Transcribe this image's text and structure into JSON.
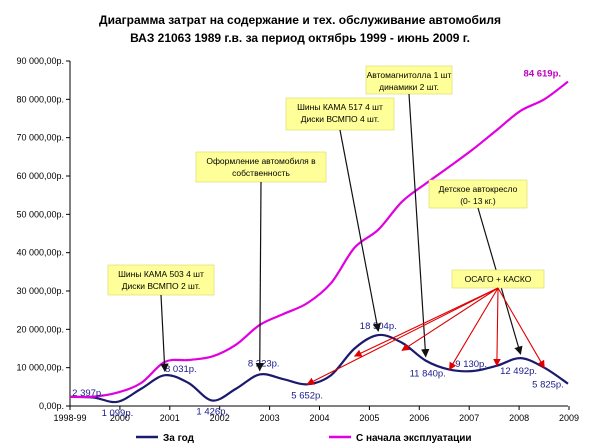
{
  "chart_data": {
    "type": "line",
    "title_line1": "Диаграмма затрат на содержание и тех. обслуживание автомобиля",
    "title_line2": "ВАЗ 21063 1989 г.в.     за период октябрь 1999 - июнь 2009 г.",
    "xlabel": "",
    "ylabel": "",
    "x_ticks": [
      "1998-99",
      "2000",
      "2001",
      "2002",
      "2003",
      "2004",
      "2005",
      "2006",
      "2007",
      "2008",
      "2009"
    ],
    "y_ticks": [
      "0,00р.",
      "10 000,00р.",
      "20 000,00р.",
      "30 000,00р.",
      "40 000,00р.",
      "50 000,00р.",
      "60 000,00р.",
      "70 000,00р.",
      "80 000,00р.",
      "90 000,00р."
    ],
    "ylim": [
      0,
      90000
    ],
    "series": [
      {
        "name": "За год",
        "color": "#1a1a6e",
        "points": [
          [
            0,
            2397
          ],
          [
            0.5,
            2200
          ],
          [
            1,
            1099
          ],
          [
            1.5,
            4500
          ],
          [
            2,
            8031
          ],
          [
            2.5,
            6000
          ],
          [
            3,
            1426
          ],
          [
            3.5,
            4500
          ],
          [
            4,
            8223
          ],
          [
            4.5,
            7000
          ],
          [
            5,
            5652
          ],
          [
            5.5,
            8000
          ],
          [
            6,
            15000
          ],
          [
            6.5,
            18504
          ],
          [
            7,
            16500
          ],
          [
            7.5,
            11840
          ],
          [
            8,
            9500
          ],
          [
            8.5,
            9130
          ],
          [
            9,
            10500
          ],
          [
            9.5,
            12492
          ],
          [
            10,
            10000
          ],
          [
            10.5,
            5825
          ]
        ],
        "labels": [
          {
            "x": 0,
            "y": 2397,
            "text": "2 397р."
          },
          {
            "x": 1,
            "y": 1099,
            "text": "1 099р."
          },
          {
            "x": 2,
            "y": 8031,
            "text": "8 031р."
          },
          {
            "x": 3,
            "y": 1426,
            "text": "1 426р."
          },
          {
            "x": 4,
            "y": 8223,
            "text": "8 223р."
          },
          {
            "x": 5,
            "y": 5652,
            "text": "5 652р."
          },
          {
            "x": 6.5,
            "y": 18504,
            "text": "18 504р."
          },
          {
            "x": 7.5,
            "y": 11840,
            "text": "11 840р."
          },
          {
            "x": 8.5,
            "y": 9130,
            "text": "9 130р."
          },
          {
            "x": 9.5,
            "y": 12492,
            "text": "12 492р."
          },
          {
            "x": 10.5,
            "y": 5825,
            "text": "5 825р."
          }
        ]
      },
      {
        "name": "С начала эксплуатации",
        "color": "#e000e0",
        "points": [
          [
            0,
            2397
          ],
          [
            0.5,
            2450
          ],
          [
            1,
            3500
          ],
          [
            1.5,
            6000
          ],
          [
            2,
            11500
          ],
          [
            2.5,
            12000
          ],
          [
            3,
            12926
          ],
          [
            3.5,
            16000
          ],
          [
            4,
            21149
          ],
          [
            4.5,
            24000
          ],
          [
            5,
            26801
          ],
          [
            5.5,
            32000
          ],
          [
            6,
            41305
          ],
          [
            6.5,
            46000
          ],
          [
            7,
            53305
          ],
          [
            7.5,
            58000
          ],
          [
            8,
            62435
          ],
          [
            8.5,
            67000
          ],
          [
            9,
            72000
          ],
          [
            9.5,
            77000
          ],
          [
            10,
            80000
          ],
          [
            10.5,
            84619
          ]
        ],
        "labels": [
          {
            "x": 10,
            "y": 84619,
            "text": "84 619р."
          }
        ]
      }
    ],
    "annotations": [
      {
        "text_lines": [
          "Шины КАМА 503 4 шт",
          "Диски ВСМПО  2 шт."
        ],
        "target": [
          2,
          8031
        ]
      },
      {
        "text_lines": [
          "Оформление автомобиля в",
          "собственность"
        ],
        "target": [
          4,
          8223
        ]
      },
      {
        "text_lines": [
          "Шины КАМА 517 4 шт",
          "Диски ВСМПО  4 шт."
        ],
        "target": [
          6.5,
          18504
        ]
      },
      {
        "text_lines": [
          "Автомагнитолла 1 шт",
          "динамики  2 шт."
        ],
        "target": [
          7.5,
          11840
        ]
      },
      {
        "text_lines": [
          "Детское автокресло",
          "(0- 13 кг.)"
        ],
        "target": [
          9.5,
          12492
        ]
      },
      {
        "text_lines": [
          "ОСАГО + КАСКО"
        ],
        "targets": [
          [
            5,
            5652
          ],
          [
            6,
            13000
          ],
          [
            7,
            14500
          ],
          [
            8,
            9500
          ],
          [
            9,
            10500
          ],
          [
            10,
            10000
          ]
        ]
      }
    ],
    "legend": {
      "placement": "bottom"
    },
    "grid": false
  }
}
